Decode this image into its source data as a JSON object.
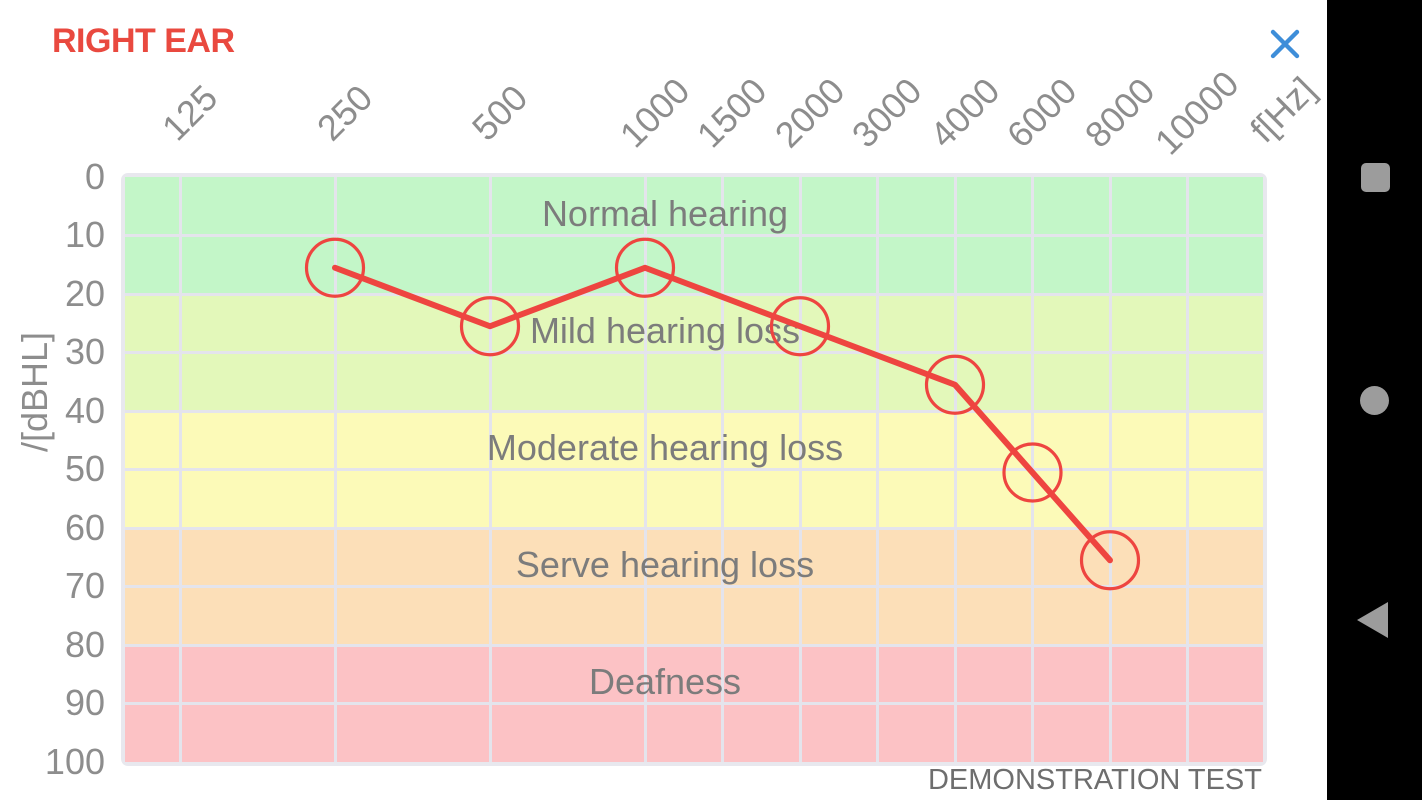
{
  "header": {
    "title": "RIGHT EAR",
    "close_icon": "x"
  },
  "chart_data": {
    "type": "line",
    "x_axis": {
      "label": "f[Hz]",
      "ticks": [
        "125",
        "250",
        "500",
        "1000",
        "1500",
        "2000",
        "3000",
        "4000",
        "6000",
        "8000",
        "10000"
      ]
    },
    "y_axis": {
      "label": "/[dBHL]",
      "ticks": [
        0,
        10,
        20,
        30,
        40,
        50,
        60,
        70,
        80,
        90,
        100
      ]
    },
    "bands": [
      {
        "label": "Normal hearing",
        "from": 0,
        "to": 20,
        "color": "#c3f6c8"
      },
      {
        "label": "Mild hearing loss",
        "from": 20,
        "to": 40,
        "color": "#e3f8ba"
      },
      {
        "label": "Moderate hearing loss",
        "from": 40,
        "to": 60,
        "color": "#fcfab8"
      },
      {
        "label": "Serve hearing loss",
        "from": 60,
        "to": 80,
        "color": "#fcdfb8"
      },
      {
        "label": "Deafness",
        "from": 80,
        "to": 100,
        "color": "#fcc2c5"
      }
    ],
    "series": [
      {
        "name": "right-ear-thresholds",
        "color": "#ee4540",
        "marker": "circle",
        "points": [
          {
            "f": "250",
            "dB": 15
          },
          {
            "f": "500",
            "dB": 25
          },
          {
            "f": "1000",
            "dB": 15
          },
          {
            "f": "2000",
            "dB": 25
          },
          {
            "f": "4000",
            "dB": 35
          },
          {
            "f": "6000",
            "dB": 50
          },
          {
            "f": "8000",
            "dB": 65
          }
        ]
      }
    ],
    "footer_note": "DEMONSTRATION TEST",
    "grid": true,
    "ylim": [
      0,
      100
    ]
  },
  "android_nav": {
    "icons": [
      "recents-square",
      "home-circle",
      "back-triangle"
    ]
  },
  "colors": {
    "title_red": "#e9493f",
    "line_red": "#ee4540",
    "close_blue": "#3e8ed9",
    "grid": "#e4e4ec",
    "axis_text": "#8d8d8d",
    "band_text": "#7c7c7c",
    "nav_icon": "#9c9c9c"
  }
}
